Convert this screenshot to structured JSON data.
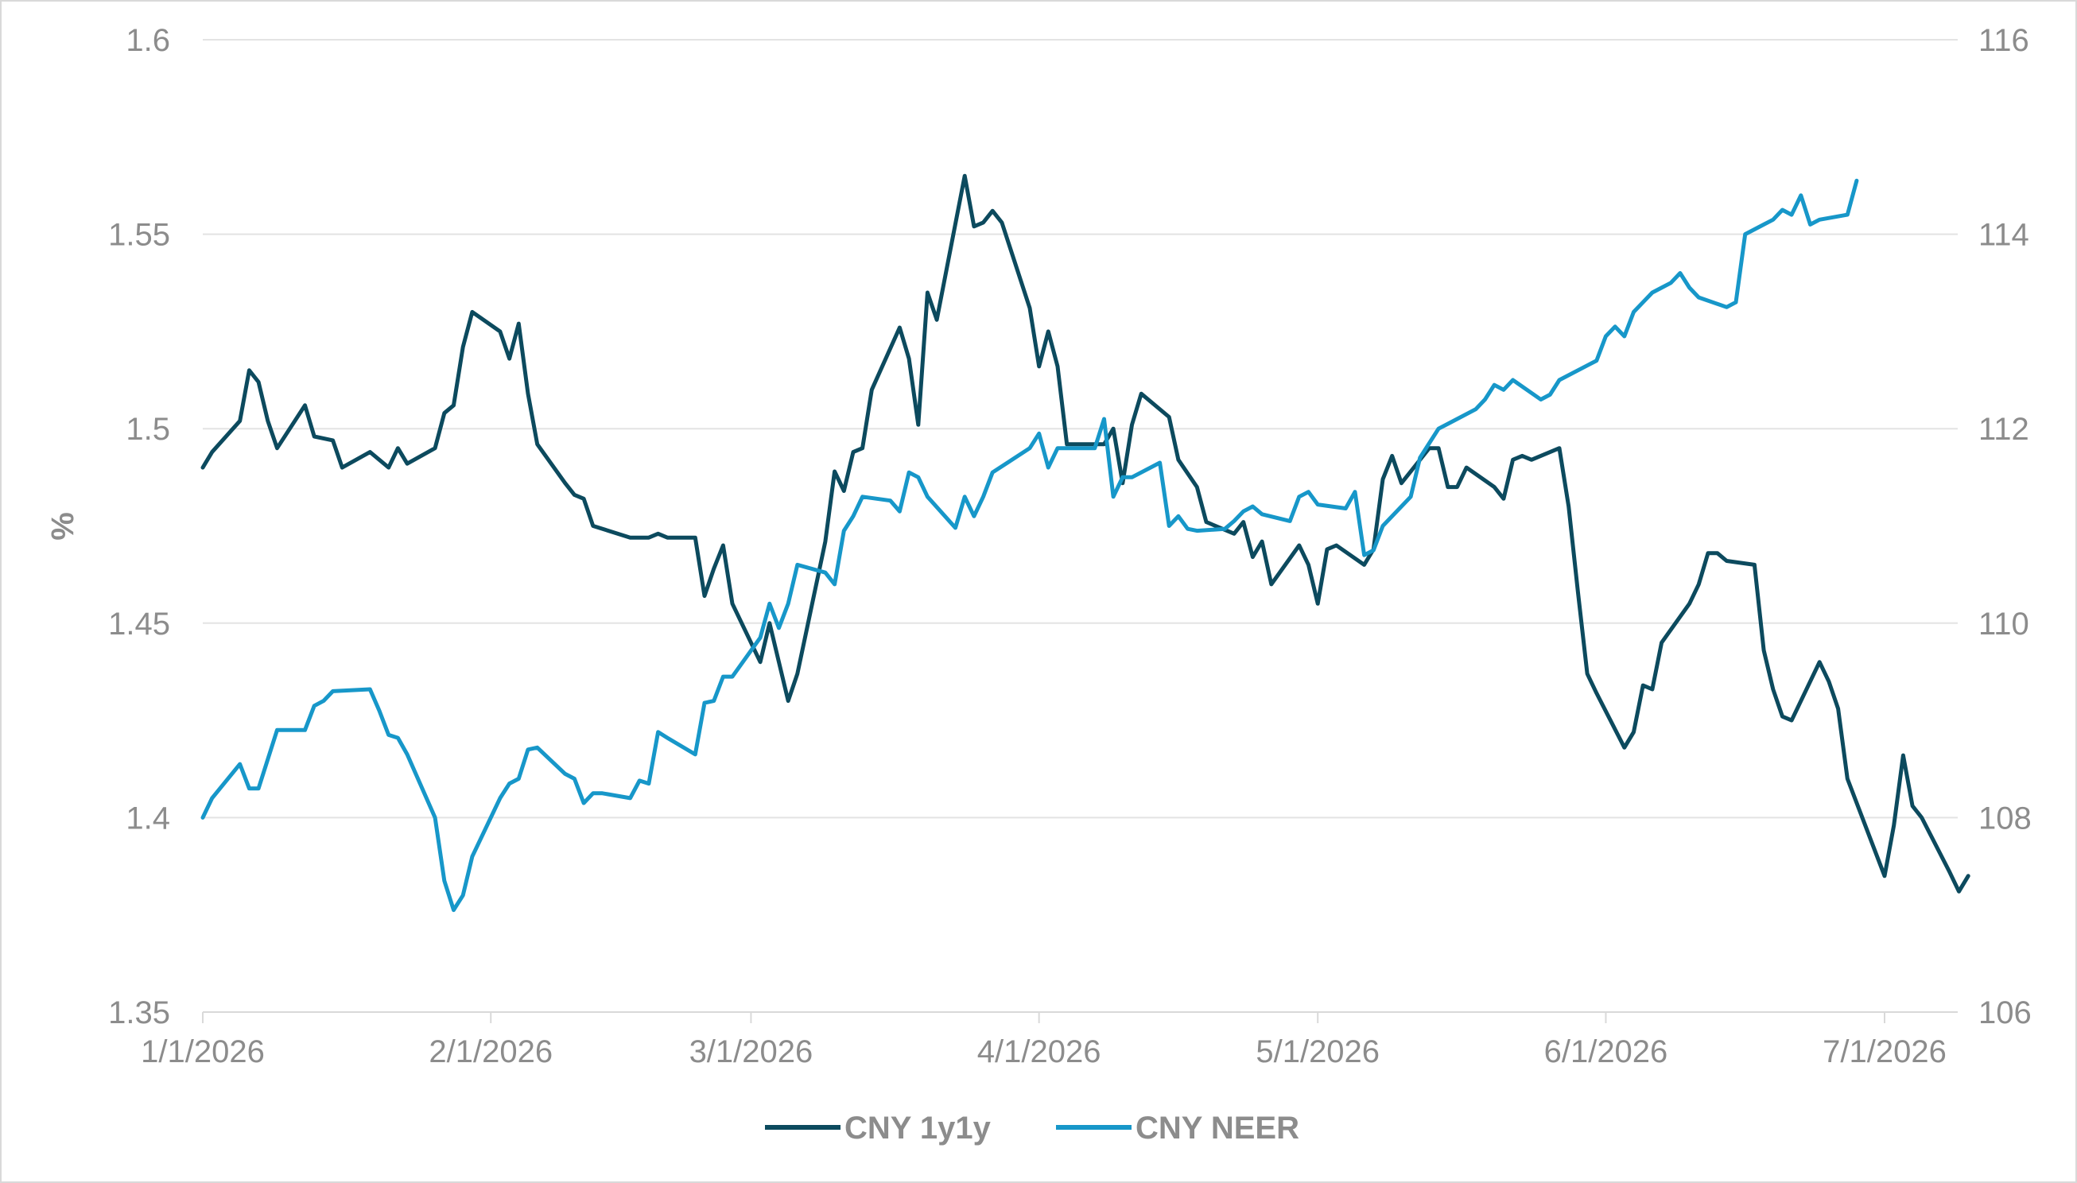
{
  "chart_data": {
    "type": "line",
    "title": "",
    "ylabel": "%",
    "y2label": "",
    "x_ticks": [
      "1/1/2026",
      "2/1/2026",
      "3/1/2026",
      "4/1/2026",
      "5/1/2026",
      "6/1/2026",
      "7/1/2026"
    ],
    "ylim": [
      1.35,
      1.6
    ],
    "y_ticks": [
      "1.35",
      "1.4",
      "1.45",
      "1.5",
      "1.55",
      "1.6"
    ],
    "y2lim": [
      106,
      116
    ],
    "y2_ticks": [
      "106",
      "108",
      "110",
      "112",
      "114",
      "116"
    ],
    "grid": true,
    "legend_position": "bottom-center",
    "series": [
      {
        "name": "CNY 1y1y",
        "axis": "left",
        "color": "#0c4a5e",
        "points": [
          [
            "2026-01-01",
            1.49
          ],
          [
            "2026-01-02",
            1.494
          ],
          [
            "2026-01-05",
            1.502
          ],
          [
            "2026-01-06",
            1.515
          ],
          [
            "2026-01-07",
            1.512
          ],
          [
            "2026-01-08",
            1.502
          ],
          [
            "2026-01-09",
            1.495
          ],
          [
            "2026-01-12",
            1.506
          ],
          [
            "2026-01-13",
            1.498
          ],
          [
            "2026-01-15",
            1.497
          ],
          [
            "2026-01-16",
            1.49
          ],
          [
            "2026-01-19",
            1.494
          ],
          [
            "2026-01-21",
            1.49
          ],
          [
            "2026-01-22",
            1.495
          ],
          [
            "2026-01-23",
            1.491
          ],
          [
            "2026-01-26",
            1.495
          ],
          [
            "2026-01-27",
            1.504
          ],
          [
            "2026-01-28",
            1.506
          ],
          [
            "2026-01-29",
            1.521
          ],
          [
            "2026-01-30",
            1.53
          ],
          [
            "2026-02-02",
            1.525
          ],
          [
            "2026-02-03",
            1.518
          ],
          [
            "2026-02-04",
            1.527
          ],
          [
            "2026-02-05",
            1.509
          ],
          [
            "2026-02-06",
            1.496
          ],
          [
            "2026-02-09",
            1.486
          ],
          [
            "2026-02-10",
            1.483
          ],
          [
            "2026-02-11",
            1.482
          ],
          [
            "2026-02-12",
            1.475
          ],
          [
            "2026-02-16",
            1.472
          ],
          [
            "2026-02-18",
            1.472
          ],
          [
            "2026-02-19",
            1.473
          ],
          [
            "2026-02-20",
            1.472
          ],
          [
            "2026-02-23",
            1.472
          ],
          [
            "2026-02-24",
            1.457
          ],
          [
            "2026-02-25",
            1.464
          ],
          [
            "2026-02-26",
            1.47
          ],
          [
            "2026-02-27",
            1.455
          ],
          [
            "2026-03-02",
            1.44
          ],
          [
            "2026-03-03",
            1.45
          ],
          [
            "2026-03-04",
            1.44
          ],
          [
            "2026-03-05",
            1.43
          ],
          [
            "2026-03-06",
            1.437
          ],
          [
            "2026-03-09",
            1.471
          ],
          [
            "2026-03-10",
            1.489
          ],
          [
            "2026-03-11",
            1.484
          ],
          [
            "2026-03-12",
            1.494
          ],
          [
            "2026-03-13",
            1.495
          ],
          [
            "2026-03-14",
            1.51
          ],
          [
            "2026-03-17",
            1.526
          ],
          [
            "2026-03-18",
            1.518
          ],
          [
            "2026-03-19",
            1.501
          ],
          [
            "2026-03-20",
            1.535
          ],
          [
            "2026-03-21",
            1.528
          ],
          [
            "2026-03-24",
            1.565
          ],
          [
            "2026-03-25",
            1.552
          ],
          [
            "2026-03-26",
            1.553
          ],
          [
            "2026-03-27",
            1.556
          ],
          [
            "2026-03-28",
            1.553
          ],
          [
            "2026-03-31",
            1.531
          ],
          [
            "2026-04-01",
            1.516
          ],
          [
            "2026-04-02",
            1.525
          ],
          [
            "2026-04-03",
            1.516
          ],
          [
            "2026-04-04",
            1.496
          ],
          [
            "2026-04-07",
            1.496
          ],
          [
            "2026-04-08",
            1.496
          ],
          [
            "2026-04-09",
            1.5
          ],
          [
            "2026-04-10",
            1.486
          ],
          [
            "2026-04-11",
            1.501
          ],
          [
            "2026-04-12",
            1.509
          ],
          [
            "2026-04-15",
            1.503
          ],
          [
            "2026-04-16",
            1.492
          ],
          [
            "2026-04-18",
            1.485
          ],
          [
            "2026-04-19",
            1.476
          ],
          [
            "2026-04-22",
            1.473
          ],
          [
            "2026-04-23",
            1.476
          ],
          [
            "2026-04-24",
            1.467
          ],
          [
            "2026-04-25",
            1.471
          ],
          [
            "2026-04-26",
            1.46
          ],
          [
            "2026-04-29",
            1.47
          ],
          [
            "2026-04-30",
            1.465
          ],
          [
            "2026-05-01",
            1.455
          ],
          [
            "2026-05-02",
            1.469
          ],
          [
            "2026-05-03",
            1.47
          ],
          [
            "2026-05-06",
            1.465
          ],
          [
            "2026-05-07",
            1.469
          ],
          [
            "2026-05-08",
            1.487
          ],
          [
            "2026-05-09",
            1.493
          ],
          [
            "2026-05-10",
            1.486
          ],
          [
            "2026-05-13",
            1.495
          ],
          [
            "2026-05-14",
            1.495
          ],
          [
            "2026-05-15",
            1.485
          ],
          [
            "2026-05-16",
            1.485
          ],
          [
            "2026-05-17",
            1.49
          ],
          [
            "2026-05-20",
            1.485
          ],
          [
            "2026-05-21",
            1.482
          ],
          [
            "2026-05-22",
            1.492
          ],
          [
            "2026-05-23",
            1.493
          ],
          [
            "2026-05-24",
            1.492
          ],
          [
            "2026-05-27",
            1.495
          ],
          [
            "2026-05-28",
            1.48
          ],
          [
            "2026-05-29",
            1.458
          ],
          [
            "2026-05-30",
            1.437
          ],
          [
            "2026-05-31",
            1.432
          ],
          [
            "2026-06-03",
            1.418
          ],
          [
            "2026-06-04",
            1.422
          ],
          [
            "2026-06-05",
            1.434
          ],
          [
            "2026-06-06",
            1.433
          ],
          [
            "2026-06-07",
            1.445
          ],
          [
            "2026-06-10",
            1.455
          ],
          [
            "2026-06-11",
            1.46
          ],
          [
            "2026-06-12",
            1.468
          ],
          [
            "2026-06-13",
            1.468
          ],
          [
            "2026-06-14",
            1.466
          ],
          [
            "2026-06-17",
            1.465
          ],
          [
            "2026-06-18",
            1.443
          ],
          [
            "2026-06-19",
            1.433
          ],
          [
            "2026-06-20",
            1.426
          ],
          [
            "2026-06-21",
            1.425
          ],
          [
            "2026-06-24",
            1.44
          ],
          [
            "2026-06-25",
            1.435
          ],
          [
            "2026-06-26",
            1.428
          ],
          [
            "2026-06-27",
            1.41
          ],
          [
            "2026-07-01",
            1.385
          ],
          [
            "2026-07-02",
            1.398
          ],
          [
            "2026-07-03",
            1.416
          ],
          [
            "2026-07-04",
            1.403
          ],
          [
            "2026-07-05",
            1.4
          ],
          [
            "2026-07-08",
            1.386
          ],
          [
            "2026-07-09",
            1.381
          ],
          [
            "2026-07-10",
            1.385
          ]
        ]
      },
      {
        "name": "CNY NEER",
        "axis": "right",
        "color": "#1797c9",
        "points": [
          [
            "2026-01-01",
            108.0
          ],
          [
            "2026-01-02",
            108.2
          ],
          [
            "2026-01-05",
            108.55
          ],
          [
            "2026-01-06",
            108.3
          ],
          [
            "2026-01-07",
            108.3
          ],
          [
            "2026-01-09",
            108.9
          ],
          [
            "2026-01-12",
            108.9
          ],
          [
            "2026-01-13",
            109.15
          ],
          [
            "2026-01-14",
            109.2
          ],
          [
            "2026-01-15",
            109.3
          ],
          [
            "2026-01-19",
            109.32
          ],
          [
            "2026-01-20",
            109.1
          ],
          [
            "2026-01-21",
            108.85
          ],
          [
            "2026-01-22",
            108.82
          ],
          [
            "2026-01-23",
            108.65
          ],
          [
            "2026-01-26",
            108.0
          ],
          [
            "2026-01-27",
            107.35
          ],
          [
            "2026-01-28",
            107.05
          ],
          [
            "2026-01-29",
            107.2
          ],
          [
            "2026-01-30",
            107.6
          ],
          [
            "2026-02-02",
            108.2
          ],
          [
            "2026-02-03",
            108.35
          ],
          [
            "2026-02-04",
            108.4
          ],
          [
            "2026-02-05",
            108.7
          ],
          [
            "2026-02-06",
            108.72
          ],
          [
            "2026-02-09",
            108.45
          ],
          [
            "2026-02-10",
            108.4
          ],
          [
            "2026-02-11",
            108.15
          ],
          [
            "2026-02-12",
            108.25
          ],
          [
            "2026-02-13",
            108.25
          ],
          [
            "2026-02-16",
            108.2
          ],
          [
            "2026-02-17",
            108.38
          ],
          [
            "2026-02-18",
            108.35
          ],
          [
            "2026-02-19",
            108.88
          ],
          [
            "2026-02-20",
            108.82
          ],
          [
            "2026-02-23",
            108.65
          ],
          [
            "2026-02-24",
            109.18
          ],
          [
            "2026-02-25",
            109.2
          ],
          [
            "2026-02-26",
            109.45
          ],
          [
            "2026-02-27",
            109.45
          ],
          [
            "2026-03-02",
            109.85
          ],
          [
            "2026-03-03",
            110.2
          ],
          [
            "2026-03-04",
            109.95
          ],
          [
            "2026-03-05",
            110.2
          ],
          [
            "2026-03-06",
            110.6
          ],
          [
            "2026-03-09",
            110.52
          ],
          [
            "2026-03-10",
            110.4
          ],
          [
            "2026-03-11",
            110.95
          ],
          [
            "2026-03-12",
            111.1
          ],
          [
            "2026-03-13",
            111.3
          ],
          [
            "2026-03-16",
            111.26
          ],
          [
            "2026-03-17",
            111.15
          ],
          [
            "2026-03-18",
            111.55
          ],
          [
            "2026-03-19",
            111.5
          ],
          [
            "2026-03-20",
            111.3
          ],
          [
            "2026-03-23",
            110.98
          ],
          [
            "2026-03-24",
            111.3
          ],
          [
            "2026-03-25",
            111.1
          ],
          [
            "2026-03-26",
            111.3
          ],
          [
            "2026-03-27",
            111.55
          ],
          [
            "2026-03-31",
            111.8
          ],
          [
            "2026-04-01",
            111.95
          ],
          [
            "2026-04-02",
            111.6
          ],
          [
            "2026-04-03",
            111.8
          ],
          [
            "2026-04-06",
            111.8
          ],
          [
            "2026-04-07",
            111.8
          ],
          [
            "2026-04-08",
            112.1
          ],
          [
            "2026-04-09",
            111.3
          ],
          [
            "2026-04-10",
            111.5
          ],
          [
            "2026-04-11",
            111.5
          ],
          [
            "2026-04-14",
            111.65
          ],
          [
            "2026-04-15",
            111.0
          ],
          [
            "2026-04-16",
            111.1
          ],
          [
            "2026-04-17",
            110.97
          ],
          [
            "2026-04-18",
            110.95
          ],
          [
            "2026-04-21",
            110.97
          ],
          [
            "2026-04-22",
            111.05
          ],
          [
            "2026-04-23",
            111.15
          ],
          [
            "2026-04-24",
            111.2
          ],
          [
            "2026-04-25",
            111.12
          ],
          [
            "2026-04-28",
            111.05
          ],
          [
            "2026-04-29",
            111.3
          ],
          [
            "2026-04-30",
            111.35
          ],
          [
            "2026-05-01",
            111.22
          ],
          [
            "2026-05-04",
            111.18
          ],
          [
            "2026-05-05",
            111.35
          ],
          [
            "2026-05-06",
            110.7
          ],
          [
            "2026-05-07",
            110.75
          ],
          [
            "2026-05-08",
            111.0
          ],
          [
            "2026-05-11",
            111.3
          ],
          [
            "2026-05-12",
            111.7
          ],
          [
            "2026-05-13",
            111.85
          ],
          [
            "2026-05-14",
            112.0
          ],
          [
            "2026-05-15",
            112.05
          ],
          [
            "2026-05-18",
            112.2
          ],
          [
            "2026-05-19",
            112.3
          ],
          [
            "2026-05-20",
            112.45
          ],
          [
            "2026-05-21",
            112.4
          ],
          [
            "2026-05-22",
            112.5
          ],
          [
            "2026-05-25",
            112.3
          ],
          [
            "2026-05-26",
            112.35
          ],
          [
            "2026-05-27",
            112.5
          ],
          [
            "2026-05-30",
            112.65
          ],
          [
            "2026-05-31",
            112.7
          ],
          [
            "2026-06-01",
            112.95
          ],
          [
            "2026-06-02",
            113.05
          ],
          [
            "2026-06-03",
            112.95
          ],
          [
            "2026-06-04",
            113.2
          ],
          [
            "2026-06-05",
            113.3
          ],
          [
            "2026-06-06",
            113.4
          ],
          [
            "2026-06-07",
            113.45
          ],
          [
            "2026-06-08",
            113.5
          ],
          [
            "2026-06-09",
            113.6
          ],
          [
            "2026-06-10",
            113.45
          ],
          [
            "2026-06-11",
            113.35
          ],
          [
            "2026-06-14",
            113.25
          ],
          [
            "2026-06-15",
            113.3
          ],
          [
            "2026-06-16",
            114.0
          ],
          [
            "2026-06-17",
            114.05
          ],
          [
            "2026-06-18",
            114.1
          ],
          [
            "2026-06-19",
            114.15
          ],
          [
            "2026-06-20",
            114.25
          ],
          [
            "2026-06-21",
            114.2
          ],
          [
            "2026-06-22",
            114.4
          ],
          [
            "2026-06-23",
            114.1
          ],
          [
            "2026-06-24",
            114.15
          ],
          [
            "2026-06-27",
            114.2
          ],
          [
            "2026-06-28",
            114.55
          ]
        ]
      }
    ]
  }
}
